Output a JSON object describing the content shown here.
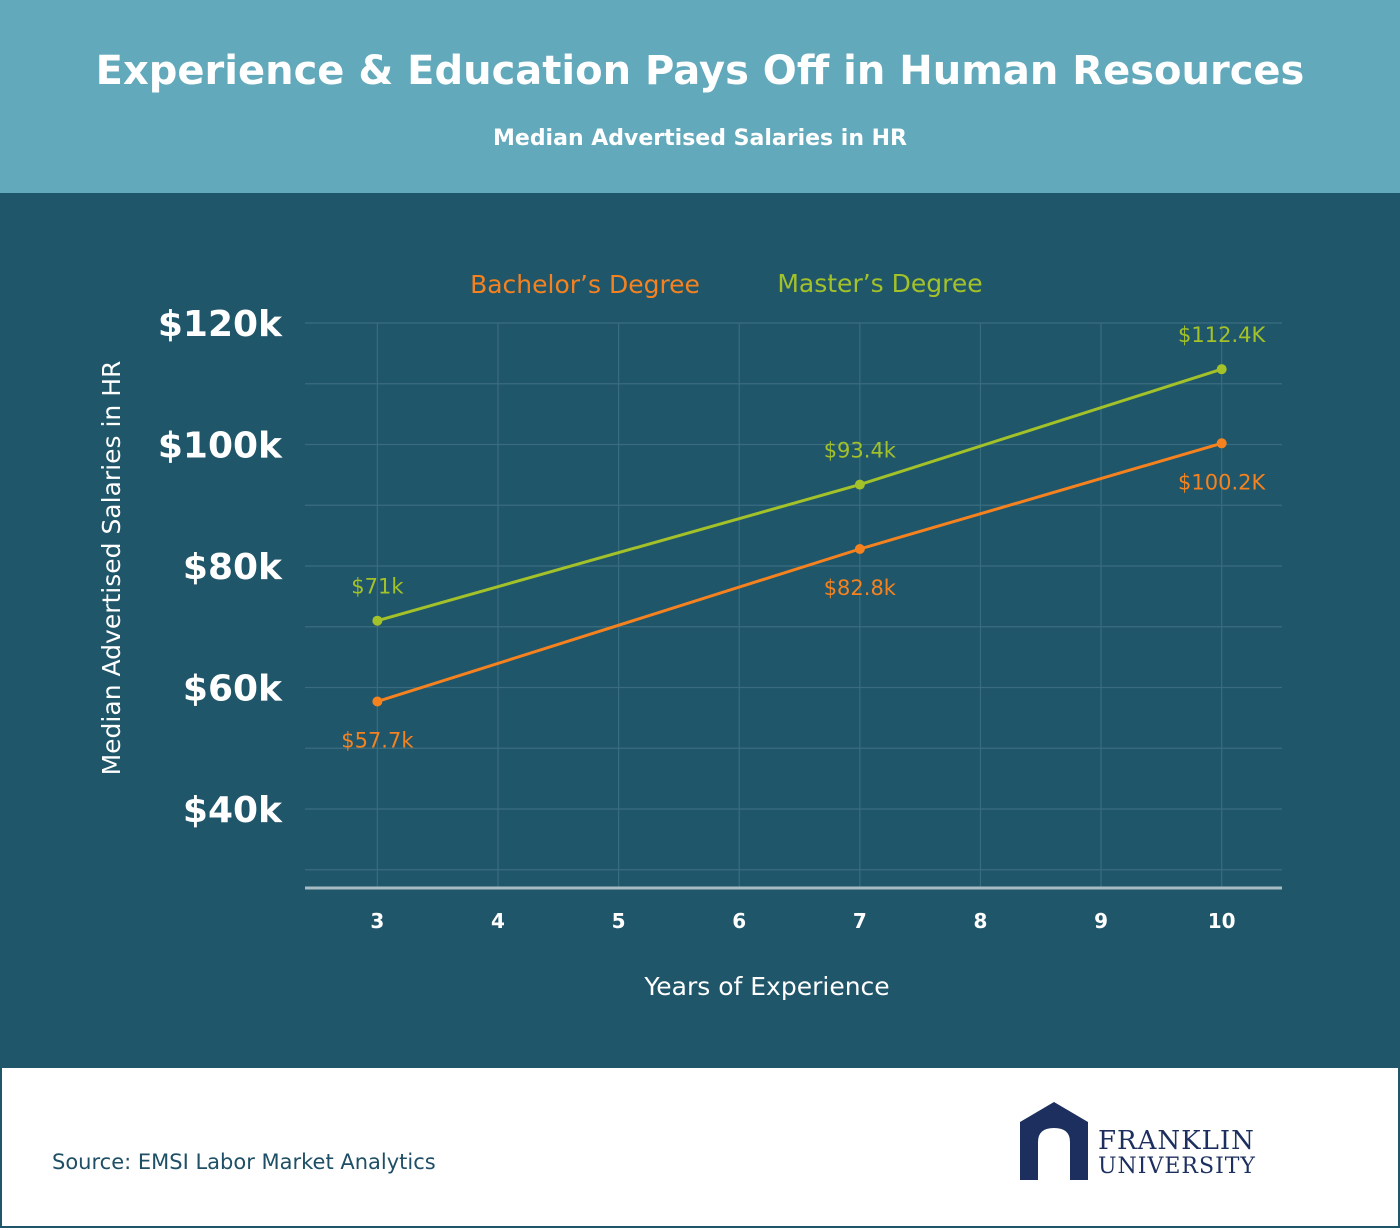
{
  "header": {
    "title": "Experience & Education Pays Off in Human Resources",
    "subtitle": "Median Advertised Salaries in HR"
  },
  "footer": {
    "source": "Source: EMSI Labor Market Analytics",
    "logo_line1": "FRANKLIN",
    "logo_line2": "UNIVERSITY"
  },
  "colors": {
    "header_bg": "#61a9bb",
    "panel_bg": "#20566a",
    "bachelors": "#f5821f",
    "masters": "#a3c128",
    "grid": "#3a6c80",
    "axis": "#a9bcc4",
    "logo": "#1c2f5e"
  },
  "chart_data": {
    "type": "line",
    "title": "",
    "xlabel": "Years of Experience",
    "ylabel": "Median Advertised Salaries in HR",
    "x_ticks": [
      3,
      4,
      5,
      6,
      7,
      8,
      9,
      10
    ],
    "y_ticks": [
      40,
      60,
      80,
      100,
      120
    ],
    "y_tick_labels": [
      "$40k",
      "$60k",
      "$80k",
      "$100k",
      "$120k"
    ],
    "xlim": [
      2.4,
      10.5
    ],
    "ylim": [
      27,
      120
    ],
    "grid": true,
    "legend_position": "top-center",
    "series": [
      {
        "name": "Bachelor’s Degree",
        "color": "#f5821f",
        "x": [
          3,
          7,
          10
        ],
        "y": [
          57.7,
          82.8,
          100.2
        ],
        "labels": [
          "$57.7k",
          "$82.8k",
          "$100.2K"
        ]
      },
      {
        "name": "Master’s Degree",
        "color": "#a3c128",
        "x": [
          3,
          7,
          10
        ],
        "y": [
          71,
          93.4,
          112.4
        ],
        "labels": [
          "$71k",
          "$93.4k",
          "$112.4K"
        ]
      }
    ]
  }
}
